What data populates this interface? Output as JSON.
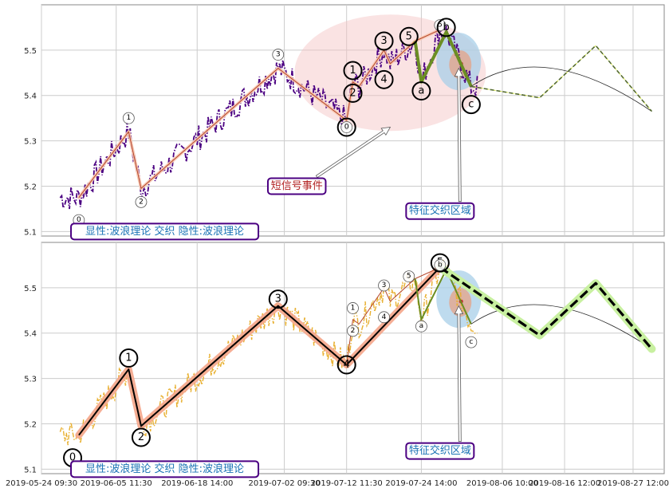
{
  "chart_data": [
    {
      "type": "line",
      "panel": "top",
      "title": "",
      "ylim": [
        5.09,
        5.6
      ],
      "yticks": [
        "5.1",
        "5.2",
        "5.3",
        "5.4",
        "5.5"
      ],
      "grid": true,
      "price_color": "#4b0082",
      "price_line_style": "dash-dot",
      "wave_points": [
        {
          "x": "2019-05-30",
          "y": 5.175
        },
        {
          "x": "2019-06-07",
          "y": 5.32
        },
        {
          "x": "2019-06-09",
          "y": 5.195
        },
        {
          "x": "2019-07-01",
          "y": 5.46
        },
        {
          "x": "2019-07-12",
          "y": 5.345
        },
        {
          "x": "2019-07-13",
          "y": 5.43
        },
        {
          "x": "2019-07-14",
          "y": 5.42
        },
        {
          "x": "2019-07-18",
          "y": 5.5
        },
        {
          "x": "2019-07-19",
          "y": 5.47
        },
        {
          "x": "2019-07-23",
          "y": 5.52
        },
        {
          "x": "2019-07-27",
          "y": 5.545
        }
      ],
      "correction_points": [
        {
          "x": "2019-07-23",
          "y": 5.52
        },
        {
          "x": "2019-07-24",
          "y": 5.43
        },
        {
          "x": "2019-07-28",
          "y": 5.54
        },
        {
          "x": "2019-08-01",
          "y": 5.42
        }
      ],
      "forecast_points": [
        {
          "x": "2019-08-01",
          "y": 5.42
        },
        {
          "x": "2019-08-12",
          "y": 5.395
        },
        {
          "x": "2019-08-21",
          "y": 5.51
        },
        {
          "x": "2019-08-30",
          "y": 5.365
        }
      ],
      "arc": {
        "from": {
          "x": "2019-08-01",
          "y": 5.42
        },
        "peak": {
          "x": "2019-08-14",
          "y": 5.46
        },
        "to": {
          "x": "2019-08-30",
          "y": 5.365
        }
      },
      "wave_labels": [
        {
          "text": "0",
          "x": "2019-05-30",
          "y": 5.125,
          "size": "small"
        },
        {
          "text": "1",
          "x": "2019-06-07",
          "y": 5.35,
          "size": "small"
        },
        {
          "text": "2",
          "x": "2019-06-09",
          "y": 5.165,
          "size": "small"
        },
        {
          "text": "3",
          "x": "2019-07-01",
          "y": 5.49,
          "size": "small"
        },
        {
          "text": "0",
          "x": "2019-07-12",
          "y": 5.33,
          "size": "large"
        },
        {
          "text": "0",
          "x": "2019-07-12",
          "y": 5.33,
          "size": "small"
        },
        {
          "text": "1",
          "x": "2019-07-13",
          "y": 5.455,
          "size": "large"
        },
        {
          "text": "2",
          "x": "2019-07-13",
          "y": 5.405,
          "size": "large"
        },
        {
          "text": "3",
          "x": "2019-07-18",
          "y": 5.52,
          "size": "large"
        },
        {
          "text": "4",
          "x": "2019-07-18",
          "y": 5.435,
          "size": "large"
        },
        {
          "text": "5",
          "x": "2019-07-22",
          "y": 5.53,
          "size": "large"
        },
        {
          "text": "a",
          "x": "2019-07-24",
          "y": 5.41,
          "size": "large"
        },
        {
          "text": "5",
          "x": "2019-07-27",
          "y": 5.555,
          "size": "small"
        },
        {
          "text": "b",
          "x": "2019-07-28",
          "y": 5.55,
          "size": "large"
        },
        {
          "text": "c",
          "x": "2019-08-01",
          "y": 5.38,
          "size": "large"
        }
      ],
      "annotations": [
        {
          "text": "短信号事件",
          "x": "2019-07-04",
          "y": 5.2,
          "color": "#b22222",
          "arrow_to": {
            "x": "2019-07-19",
            "y": 5.33
          }
        },
        {
          "text": "特征交织区域",
          "x": "2019-07-27",
          "y": 5.145,
          "color": "#1a73b5",
          "arrow_to": {
            "x": "2019-07-30",
            "y": 5.46
          }
        },
        {
          "text": "显性:波浪理论 交织 隐性:波浪理论",
          "x": "2019-05-29",
          "y": 5.1,
          "color": "#1a73b5"
        }
      ]
    },
    {
      "type": "line",
      "panel": "bottom",
      "title": "",
      "ylim": [
        5.09,
        5.6
      ],
      "yticks": [
        "5.1",
        "5.2",
        "5.3",
        "5.4",
        "5.5"
      ],
      "xticks": [
        "2019-05-24 09:30",
        "2019-06-05 11:30",
        "2019-06-18 14:00",
        "2019-07-02 09:30",
        "2019-07-12 11:30",
        "2019-07-24 14:00",
        "2019-08-06 10:00",
        "2019-08-16 12:00",
        "2019-08-27 12:00"
      ],
      "grid": true,
      "price_color": "#e8b030",
      "price_line_style": "dash-dot",
      "wave_points": [
        {
          "x": "2019-05-30",
          "y": 5.175
        },
        {
          "x": "2019-06-07",
          "y": 5.32
        },
        {
          "x": "2019-06-09",
          "y": 5.195
        },
        {
          "x": "2019-07-01",
          "y": 5.46
        },
        {
          "x": "2019-07-12",
          "y": 5.33
        },
        {
          "x": "2019-07-27",
          "y": 5.545
        }
      ],
      "subwave_points": [
        {
          "x": "2019-07-12",
          "y": 5.33
        },
        {
          "x": "2019-07-13",
          "y": 5.43
        },
        {
          "x": "2019-07-14",
          "y": 5.42
        },
        {
          "x": "2019-07-18",
          "y": 5.5
        },
        {
          "x": "2019-07-19",
          "y": 5.47
        },
        {
          "x": "2019-07-23",
          "y": 5.52
        },
        {
          "x": "2019-07-27",
          "y": 5.545
        }
      ],
      "correction_points": [
        {
          "x": "2019-07-23",
          "y": 5.52
        },
        {
          "x": "2019-07-24",
          "y": 5.43
        },
        {
          "x": "2019-07-28",
          "y": 5.54
        },
        {
          "x": "2019-08-01",
          "y": 5.42
        }
      ],
      "forecast_points": [
        {
          "x": "2019-07-27",
          "y": 5.545
        },
        {
          "x": "2019-08-12",
          "y": 5.395
        },
        {
          "x": "2019-08-21",
          "y": 5.51
        },
        {
          "x": "2019-08-30",
          "y": 5.365
        }
      ],
      "arc": {
        "from": {
          "x": "2019-08-01",
          "y": 5.42
        },
        "peak": {
          "x": "2019-08-14",
          "y": 5.46
        },
        "to": {
          "x": "2019-08-30",
          "y": 5.365
        }
      },
      "wave_labels": [
        {
          "text": "0",
          "x": "2019-05-29",
          "y": 5.125,
          "size": "large"
        },
        {
          "text": "1",
          "x": "2019-06-07",
          "y": 5.345,
          "size": "large"
        },
        {
          "text": "2",
          "x": "2019-06-09",
          "y": 5.17,
          "size": "large"
        },
        {
          "text": "3",
          "x": "2019-07-01",
          "y": 5.475,
          "size": "large"
        },
        {
          "text": "4",
          "x": "2019-07-12",
          "y": 5.33,
          "size": "large"
        },
        {
          "text": "1",
          "x": "2019-07-13",
          "y": 5.455,
          "size": "small"
        },
        {
          "text": "2",
          "x": "2019-07-13",
          "y": 5.405,
          "size": "small"
        },
        {
          "text": "3",
          "x": "2019-07-18",
          "y": 5.505,
          "size": "small"
        },
        {
          "text": "4",
          "x": "2019-07-18",
          "y": 5.435,
          "size": "small"
        },
        {
          "text": "5",
          "x": "2019-07-22",
          "y": 5.525,
          "size": "small"
        },
        {
          "text": "a",
          "x": "2019-07-24",
          "y": 5.415,
          "size": "small"
        },
        {
          "text": "5",
          "x": "2019-07-27",
          "y": 5.555,
          "size": "large"
        },
        {
          "text": "b",
          "x": "2019-07-27",
          "y": 5.55,
          "size": "small"
        },
        {
          "text": "c",
          "x": "2019-08-01",
          "y": 5.38,
          "size": "small"
        }
      ],
      "annotations": [
        {
          "text": "特征交织区域",
          "x": "2019-07-27",
          "y": 5.14,
          "color": "#1a73b5",
          "arrow_to": {
            "x": "2019-07-30",
            "y": 5.46
          }
        },
        {
          "text": "显性:波浪理论 交织 隐性:波浪理论",
          "x": "2019-05-29",
          "y": 5.1,
          "color": "#1a73b5"
        }
      ]
    }
  ],
  "colors": {
    "grid": "#cccccc",
    "axis": "#888888",
    "wave_line": "#b4452a",
    "wave_glow_top": "#f8c8b0",
    "wave_glow_bottom": "#f4a58a",
    "correction": "#6b8e23",
    "forecast": "#000000",
    "forecast_top": "#556b2f",
    "forecast_glow": "#c8f0a0",
    "ellipse_pink": "#f4c2c2",
    "ellipse_blue": "#a8cfe8",
    "ellipse_core": "#e8a080",
    "box_border": "#4b0082"
  }
}
